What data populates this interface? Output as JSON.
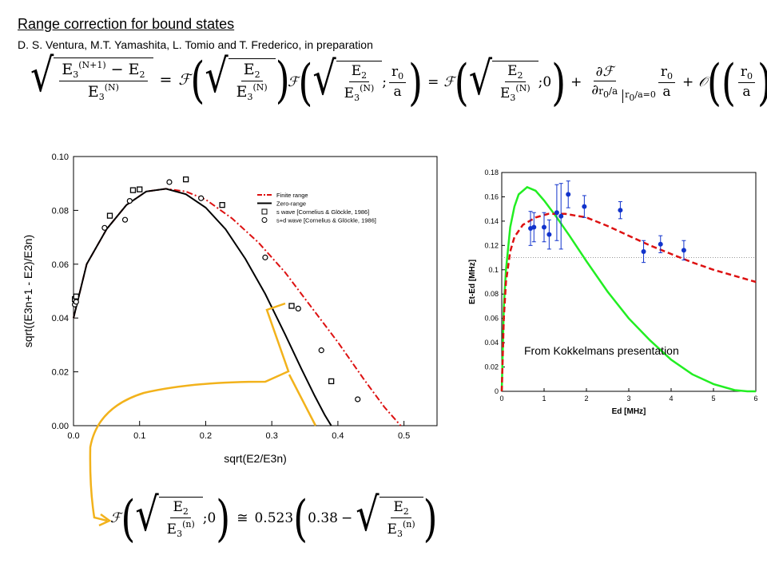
{
  "header": {
    "title": "Range correction for bound states",
    "authors": "D. S. Ventura, M.T. Yamashita, L. Tomio and T. Frederico, in preparation"
  },
  "equations": {
    "eq1_lhs_num": "E3(N+1) − E2",
    "eq1_lhs_den": "E3(N)",
    "eq1_rhs_num": "E2",
    "eq1_rhs_den": "E3(N)",
    "eq2_text": "F( √(E2/E3(N)) ; r0/a ) = F( √(E2/E3(N)) ; 0 ) + ∂F/∂(r0/a)|r0/a=0 · r0/a + O((r0/a)²)",
    "eq3_coefficient": "0.523",
    "eq3_offset": "0.38"
  },
  "colors": {
    "finite_range": "#dd1111",
    "zero_range": "#000000",
    "arrow": "#f2b21b",
    "green_curve": "#22ee22",
    "blue_points": "#1133cc"
  },
  "note": "From Kokkelmans presentation",
  "chart_data": [
    {
      "type": "line",
      "xlabel": "sqrt(E2/E3n)",
      "ylabel": "sqrt((E3n+1 - E2)/E3n)",
      "xlim": [
        0.0,
        0.55
      ],
      "ylim": [
        0.0,
        0.1
      ],
      "x_ticks": [
        "0.0",
        "0.1",
        "0.2",
        "0.3",
        "0.4",
        "0.5"
      ],
      "y_ticks": [
        "0.00",
        "0.02",
        "0.04",
        "0.06",
        "0.08",
        "0.10"
      ],
      "legend_position": "top-right",
      "legend": [
        "Finite range",
        "Zero-range",
        "s wave [Cornelius & Glöckle, 1986]",
        "s+d wave [Cornelius & Glöckle, 1986]"
      ],
      "series": [
        {
          "name": "Finite range",
          "style": "dash-dot",
          "x": [
            0.0,
            0.02,
            0.05,
            0.08,
            0.11,
            0.14,
            0.17,
            0.2,
            0.24,
            0.28,
            0.32,
            0.36,
            0.4,
            0.44,
            0.47,
            0.495
          ],
          "y": [
            0.04,
            0.06,
            0.073,
            0.082,
            0.087,
            0.088,
            0.087,
            0.084,
            0.077,
            0.068,
            0.057,
            0.044,
            0.031,
            0.017,
            0.007,
            0.0
          ]
        },
        {
          "name": "Zero-range",
          "style": "solid",
          "x": [
            0.0,
            0.02,
            0.05,
            0.08,
            0.11,
            0.14,
            0.17,
            0.2,
            0.23,
            0.26,
            0.29,
            0.32,
            0.345,
            0.365,
            0.38,
            0.39
          ],
          "y": [
            0.04,
            0.06,
            0.073,
            0.082,
            0.087,
            0.088,
            0.086,
            0.081,
            0.073,
            0.062,
            0.049,
            0.034,
            0.021,
            0.011,
            0.004,
            0.0
          ]
        },
        {
          "name": "s wave [Cornelius & Glöckle, 1986]",
          "style": "square",
          "x": [
            0.002,
            0.004,
            0.055,
            0.09,
            0.1,
            0.17,
            0.225,
            0.33,
            0.39
          ],
          "y": [
            0.047,
            0.048,
            0.078,
            0.0875,
            0.0878,
            0.0915,
            0.082,
            0.0445,
            0.0165
          ]
        },
        {
          "name": "s+d wave [Cornelius & Glöckle, 1986]",
          "style": "circle",
          "x": [
            0.002,
            0.004,
            0.047,
            0.078,
            0.085,
            0.145,
            0.193,
            0.29,
            0.34,
            0.375,
            0.43
          ],
          "y": [
            0.045,
            0.046,
            0.0735,
            0.0765,
            0.0835,
            0.0905,
            0.0845,
            0.0625,
            0.0435,
            0.028,
            0.0098
          ]
        }
      ]
    },
    {
      "type": "line",
      "xlabel": "Ed [MHz]",
      "ylabel": "Et-Ed [MHz]",
      "xlim": [
        0,
        6
      ],
      "ylim": [
        0,
        0.18
      ],
      "x_ticks": [
        "0",
        "1",
        "2",
        "3",
        "4",
        "5",
        "6"
      ],
      "y_ticks": [
        "0",
        "0.02",
        "0.04",
        "0.06",
        "0.08",
        "0.1",
        "0.12",
        "0.14",
        "0.16",
        "0.18"
      ],
      "reference_line_y": 0.11,
      "series": [
        {
          "style": "green-solid",
          "x": [
            0.0,
            0.05,
            0.1,
            0.2,
            0.3,
            0.4,
            0.6,
            0.8,
            1.0,
            1.3,
            1.6,
            2.0,
            2.5,
            3.0,
            3.5,
            4.0,
            4.5,
            5.0,
            5.5,
            5.8,
            6.0
          ],
          "y": [
            0.0,
            0.07,
            0.1,
            0.135,
            0.152,
            0.162,
            0.168,
            0.165,
            0.157,
            0.143,
            0.128,
            0.107,
            0.082,
            0.06,
            0.042,
            0.026,
            0.014,
            0.006,
            0.001,
            0.0,
            0.0
          ]
        },
        {
          "style": "red-dashed",
          "x": [
            0.0,
            0.05,
            0.1,
            0.2,
            0.3,
            0.5,
            0.8,
            1.1,
            1.5,
            2.0,
            2.5,
            3.0,
            3.5,
            4.0,
            4.5,
            5.0,
            5.5,
            6.0
          ],
          "y": [
            0.0,
            0.06,
            0.09,
            0.115,
            0.127,
            0.137,
            0.143,
            0.146,
            0.146,
            0.143,
            0.136,
            0.128,
            0.12,
            0.113,
            0.106,
            0.1,
            0.095,
            0.09
          ]
        },
        {
          "style": "blue-points",
          "x": [
            0.68,
            0.76,
            1.0,
            1.12,
            1.3,
            1.4,
            1.57,
            1.95,
            2.8,
            3.35,
            3.75,
            4.3
          ],
          "y": [
            0.134,
            0.135,
            0.135,
            0.129,
            0.147,
            0.144,
            0.162,
            0.152,
            0.149,
            0.115,
            0.121,
            0.116
          ],
          "err": [
            0.014,
            0.012,
            0.012,
            0.012,
            0.023,
            0.027,
            0.011,
            0.009,
            0.007,
            0.009,
            0.007,
            0.008
          ]
        }
      ]
    }
  ]
}
